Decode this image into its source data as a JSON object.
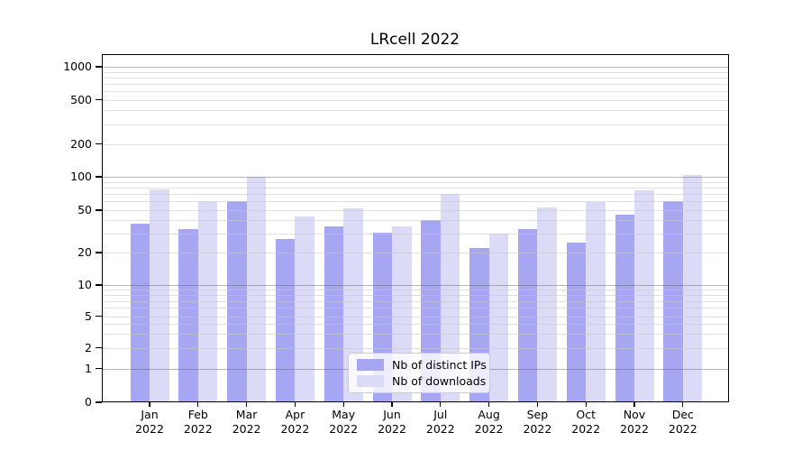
{
  "chart_data": {
    "type": "bar",
    "title": "LRcell 2022",
    "categories": [
      "Jan 2022",
      "Feb 2022",
      "Mar 2022",
      "Apr 2022",
      "May 2022",
      "Jun 2022",
      "Jul 2022",
      "Aug 2022",
      "Sep 2022",
      "Oct 2022",
      "Nov 2022",
      "Dec 2022"
    ],
    "months": [
      "Jan",
      "Feb",
      "Mar",
      "Apr",
      "May",
      "Jun",
      "Jul",
      "Aug",
      "Sep",
      "Oct",
      "Nov",
      "Dec"
    ],
    "year_label": "2022",
    "series": [
      {
        "name": "Nb of distinct IPs",
        "color": "#a6a6f3",
        "values": [
          37,
          33,
          60,
          27,
          35,
          31,
          40,
          22,
          33,
          25,
          45,
          60
        ]
      },
      {
        "name": "Nb of downloads",
        "color": "#dbdbf8",
        "values": [
          77,
          60,
          100,
          44,
          52,
          35,
          70,
          30,
          53,
          59,
          76,
          103
        ]
      }
    ],
    "xlabel": "",
    "ylabel": "",
    "y_axis": {
      "scale": "symlog",
      "tick_labels": [
        "0",
        "1",
        "2",
        "5",
        "10",
        "20",
        "50",
        "100",
        "200",
        "500",
        "1000"
      ],
      "tick_values": [
        0,
        1,
        2,
        5,
        10,
        20,
        50,
        100,
        200,
        500,
        1000
      ],
      "ylim": [
        0,
        1000
      ],
      "major_gridlines_at": [
        1,
        10,
        100,
        1000
      ]
    },
    "grid": {
      "horizontal_major": true,
      "horizontal_minor": true,
      "vertical": false
    },
    "legend": {
      "position": "lower center",
      "entries": [
        "Nb of distinct IPs",
        "Nb of downloads"
      ]
    }
  }
}
